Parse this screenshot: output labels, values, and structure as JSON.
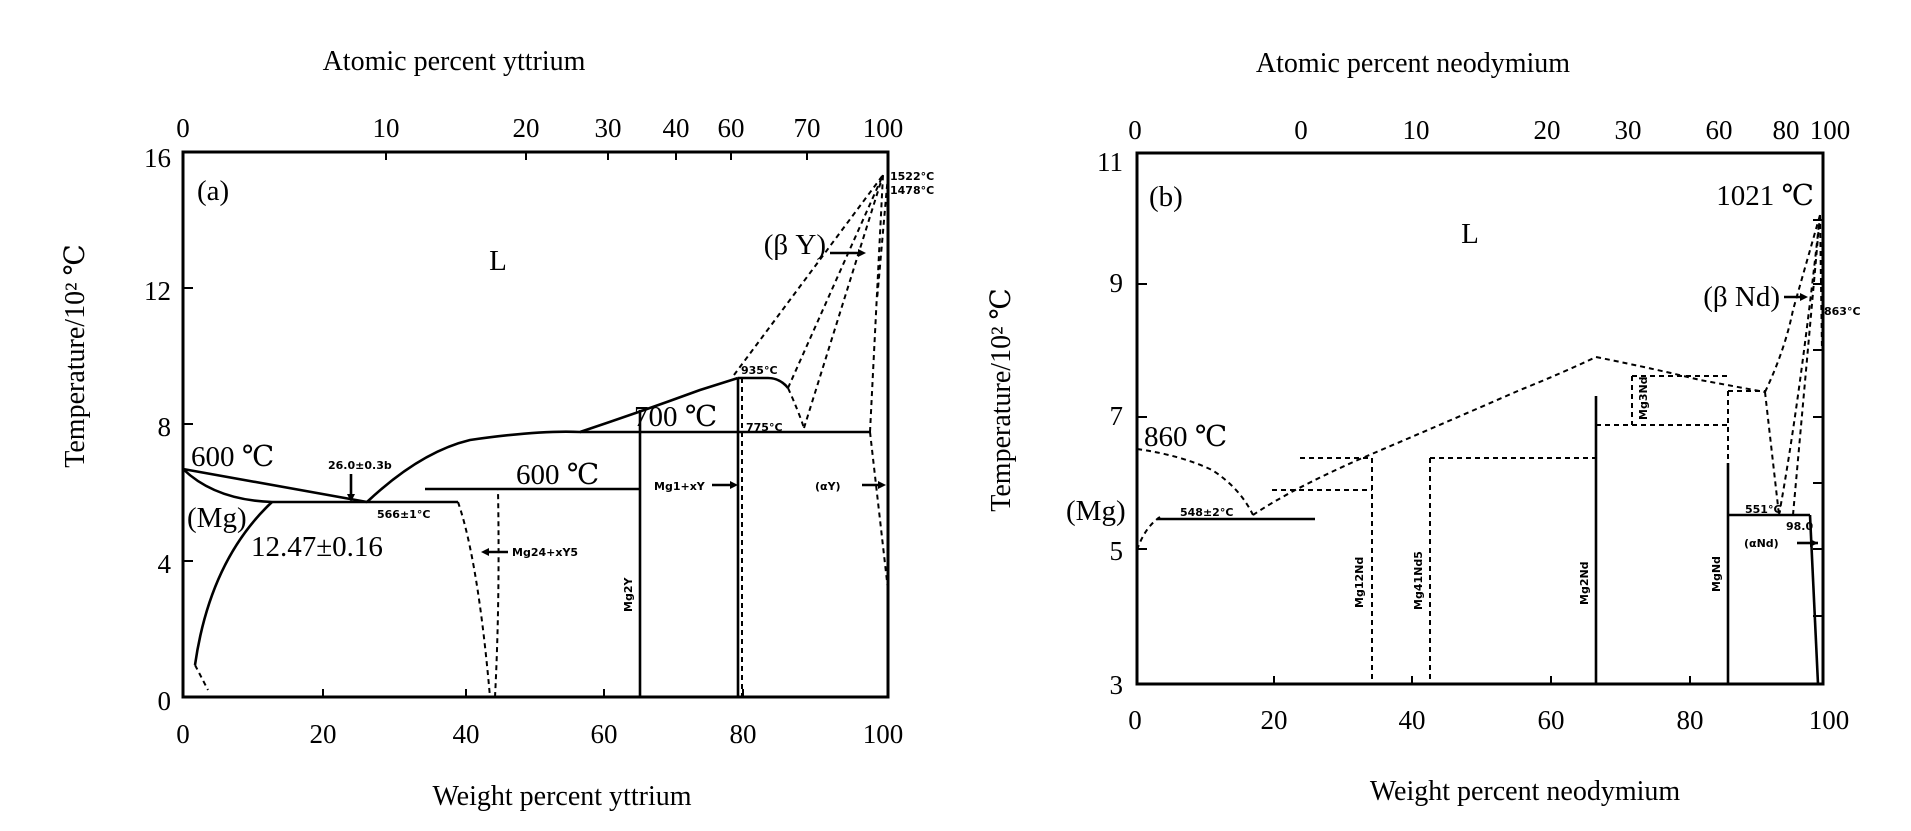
{
  "panel_a": {
    "top_axis_title": "Atomic percent yttrium",
    "top_ticks": [
      "0",
      "10",
      "20",
      "30",
      "40",
      "60",
      "70",
      "100"
    ],
    "left_axis_title": "Temperature/10² ℃",
    "left_ticks": [
      "16",
      "12",
      "8",
      "4",
      "0"
    ],
    "bottom_axis_title": "Weight percent yttrium",
    "bottom_ticks": [
      "0",
      "20",
      "40",
      "60",
      "80",
      "100"
    ],
    "panel_label": "(a)",
    "labels": {
      "liquid": "L",
      "beta_phase": "(β Y)",
      "t600_left": "600 ℃",
      "t700": "700 ℃",
      "t600_mid": "600 ℃",
      "mg_phase": "(Mg)",
      "eutectic_comp": "12.47±0.16",
      "melt_1522": "1522°C",
      "melt_1478": "1478°C",
      "eutectic_pt": "26.0±0.3b",
      "eutectic_t": "566±1°C",
      "t935": "935°C",
      "t775": "775°C",
      "phase_mg24y5": "Mg24+xY5",
      "phase_mg2y": "Mg2Y",
      "phase_mg1y": "Mg1+xY",
      "alpha_phase": "(αY)"
    }
  },
  "panel_b": {
    "top_axis_title": "Atomic percent neodymium",
    "top_ticks": [
      "0",
      "0",
      "10",
      "20",
      "30",
      "60",
      "80",
      "100"
    ],
    "left_axis_title": "Temperature/10² ℃",
    "left_ticks": [
      "11",
      "9",
      "7",
      "5",
      "3"
    ],
    "bottom_axis_title": "Weight percent neodymium",
    "bottom_ticks": [
      "0",
      "20",
      "40",
      "60",
      "80",
      "100"
    ],
    "panel_label": "(b)",
    "labels": {
      "liquid": "L",
      "t1021": "1021 ℃",
      "beta_phase": "(β Nd)",
      "t860": "860 ℃",
      "mg_phase": "(Mg)",
      "t863": "863°C",
      "eutectic_t": "548±2°C",
      "mg12nd": "Mg12Nd",
      "mg41nd5": "Mg41Nd5",
      "mg3nd": "Mg3Nd",
      "mg2nd": "Mg2Nd",
      "mgnd": "MgNd",
      "t551": "551°C",
      "comp_980": "98.0",
      "alpha_phase": "(αNd)"
    }
  }
}
